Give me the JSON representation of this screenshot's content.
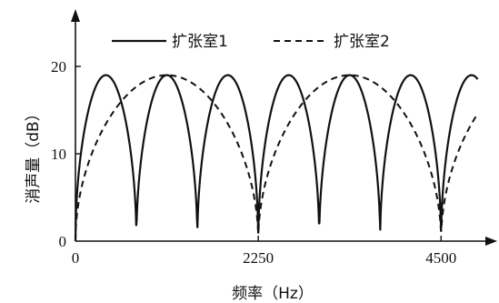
{
  "chart_data": {
    "type": "line",
    "title": "",
    "xlabel": "频率（Hz）",
    "ylabel": "消声量（dB）",
    "xlim": [
      0,
      5000
    ],
    "ylim": [
      0,
      22
    ],
    "x_ticks": [
      0,
      2250,
      4500
    ],
    "x_tick_labels": [
      "0",
      "2250",
      "4500"
    ],
    "y_ticks": [
      0,
      10,
      20
    ],
    "y_tick_labels": [
      "0",
      "10",
      "20"
    ],
    "grid": false,
    "legend_position": "top",
    "series": [
      {
        "name": "扩张室1",
        "style": "solid",
        "color": "#111111",
        "first_null_hz": 750,
        "null_spacing_hz": 750,
        "peak_db": 19,
        "x_end_hz": 4950
      },
      {
        "name": "扩张室2",
        "style": "dashed",
        "color": "#111111",
        "first_null_hz": 0,
        "null_spacing_hz": 2250,
        "peak_db": 19,
        "x_end_hz": 4930
      }
    ]
  }
}
